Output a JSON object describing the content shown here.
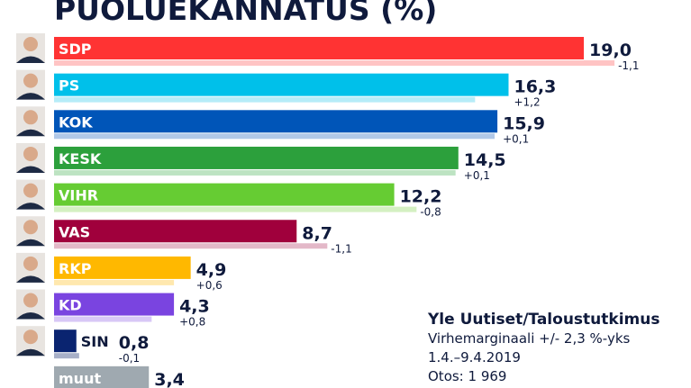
{
  "title": "PUOLUEKANNATUS (%)",
  "source": {
    "name": "Yle Uutiset/Taloustutkimus",
    "margin": "Virhemarginaali +/- 2,3 %-yks",
    "dates": "1.4.–9.4.2019",
    "sample": "Otos: 1 969"
  },
  "chart_data": {
    "type": "bar",
    "orientation": "horizontal",
    "title": "PUOLUEKANNATUS (%)",
    "xlim": [
      0,
      21
    ],
    "grid": false,
    "categories": [
      "SDP",
      "PS",
      "KOK",
      "KESK",
      "VIHR",
      "VAS",
      "RKP",
      "KD",
      "SIN",
      "muut"
    ],
    "values": [
      19.0,
      16.3,
      15.9,
      14.5,
      12.2,
      8.7,
      4.9,
      4.3,
      0.8,
      3.4
    ],
    "value_labels": [
      "19,0",
      "16,3",
      "15,9",
      "14,5",
      "12,2",
      "8,7",
      "4,9",
      "4,3",
      "0,8",
      "3,4"
    ],
    "changes": [
      -1.1,
      1.2,
      0.1,
      0.1,
      -0.8,
      -1.1,
      0.6,
      0.8,
      -0.1,
      null
    ],
    "change_labels": [
      "-1,1",
      "+1,2",
      "+0,1",
      "+0,1",
      "-0,8",
      "-1,1",
      "+0,6",
      "+0,8",
      "-0,1",
      ""
    ],
    "colors": [
      "#ff3333",
      "#00c0ea",
      "#0055b8",
      "#2ca03c",
      "#66cc33",
      "#a0003c",
      "#ffb800",
      "#7a44e0",
      "#0a2470",
      "#9fa9b0"
    ],
    "ghost_colors": [
      "#ffc4c4",
      "#b6ecf8",
      "#b0c8e8",
      "#bde3c2",
      "#d4f0c2",
      "#e3b8c8",
      "#ffe8ae",
      "#d8c8f6",
      "#a8b0c8",
      ""
    ],
    "has_photo": [
      true,
      true,
      true,
      true,
      true,
      true,
      true,
      true,
      true,
      false
    ]
  }
}
